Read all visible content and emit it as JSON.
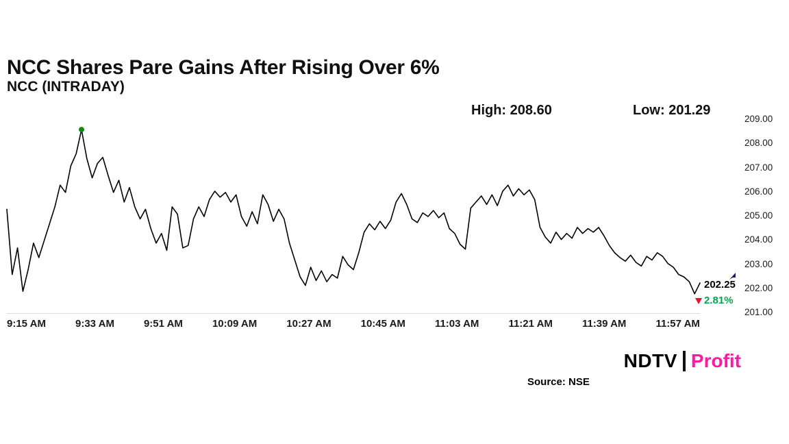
{
  "header": {
    "title": "NCC Shares Pare Gains After Rising Over 6%",
    "subtitle": "NCC (INTRADAY)",
    "high_label": "High: 208.60",
    "low_label": "Low: 201.29"
  },
  "chart_data": {
    "type": "line",
    "symbol": "NCC",
    "timeframe": "INTRADAY",
    "title": "NCC Shares Pare Gains After Rising Over 6%",
    "high": 208.6,
    "low": 201.29,
    "last_price": 202.25,
    "change_percent": "2.81%",
    "ylim": [
      201,
      209
    ],
    "y_ticks": [
      "209.00",
      "208.00",
      "207.00",
      "206.00",
      "205.00",
      "204.00",
      "203.00",
      "202.00",
      "201.00"
    ],
    "x_ticks": [
      "9:15 AM",
      "9:33 AM",
      "9:51 AM",
      "10:09 AM",
      "10:27 AM",
      "10:45 AM",
      "11:03 AM",
      "11:21 AM",
      "11:39 AM",
      "11:57 AM"
    ],
    "values": [
      205.3,
      202.6,
      203.7,
      201.9,
      202.8,
      203.9,
      203.3,
      204.0,
      204.7,
      205.4,
      206.3,
      206.0,
      207.1,
      207.6,
      208.6,
      207.4,
      206.6,
      207.2,
      207.45,
      206.7,
      206.0,
      206.5,
      205.6,
      206.2,
      205.4,
      204.9,
      205.3,
      204.5,
      203.9,
      204.3,
      203.6,
      205.4,
      205.1,
      203.7,
      203.8,
      204.9,
      205.4,
      205.0,
      205.7,
      206.05,
      205.8,
      206.0,
      205.6,
      205.9,
      205.0,
      204.6,
      205.2,
      204.7,
      205.9,
      205.5,
      204.8,
      205.3,
      204.9,
      203.9,
      203.2,
      202.5,
      202.15,
      202.9,
      202.35,
      202.75,
      202.3,
      202.6,
      202.45,
      203.35,
      203.0,
      202.8,
      203.5,
      204.35,
      204.7,
      204.45,
      204.8,
      204.5,
      204.85,
      205.6,
      205.95,
      205.5,
      204.9,
      204.75,
      205.15,
      205.0,
      205.25,
      204.95,
      205.15,
      204.5,
      204.3,
      203.85,
      203.65,
      205.35,
      205.6,
      205.85,
      205.5,
      205.9,
      205.45,
      206.05,
      206.3,
      205.85,
      206.15,
      205.9,
      206.1,
      205.7,
      204.55,
      204.15,
      203.9,
      204.35,
      204.05,
      204.3,
      204.1,
      204.55,
      204.3,
      204.5,
      204.35,
      204.55,
      204.2,
      203.8,
      203.5,
      203.3,
      203.15,
      203.4,
      203.1,
      202.95,
      203.35,
      203.2,
      203.5,
      203.35,
      203.05,
      202.9,
      202.6,
      202.5,
      202.3,
      201.8,
      202.25
    ]
  },
  "annotations": {
    "last_price_label": "202.25",
    "change_percent_label": "2.81%"
  },
  "footer": {
    "source": "Source: NSE",
    "brand_ndtv": "NDTV",
    "brand_profit": "Profit"
  },
  "colors": {
    "line": "#000000",
    "peak_dot": "#128a12",
    "percent_green": "#00a651",
    "marker_red": "#e8112d",
    "profit_pink": "#ff1aa3",
    "navy_marker": "#1b1b6f"
  }
}
